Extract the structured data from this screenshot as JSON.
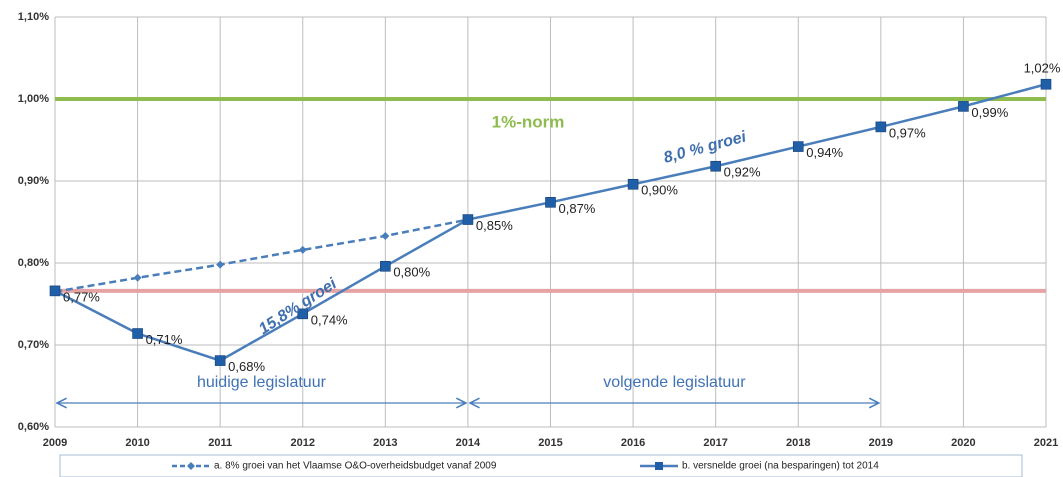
{
  "chart_data": {
    "type": "line",
    "x": [
      2009,
      2010,
      2011,
      2012,
      2013,
      2014,
      2015,
      2016,
      2017,
      2018,
      2019,
      2020,
      2021
    ],
    "xlim": [
      2009,
      2021
    ],
    "xticks": [
      2009,
      2010,
      2011,
      2012,
      2013,
      2014,
      2015,
      2016,
      2017,
      2018,
      2019,
      2020,
      2021
    ],
    "ylim": [
      0.6,
      1.1
    ],
    "yticks": [
      {
        "value": 0.6,
        "label": "0,60%"
      },
      {
        "value": 0.7,
        "label": "0,70%"
      },
      {
        "value": 0.8,
        "label": "0,80%"
      },
      {
        "value": 0.9,
        "label": "0,90%"
      },
      {
        "value": 1.0,
        "label": "1,00%"
      },
      {
        "value": 1.1,
        "label": "1,10%"
      }
    ],
    "grid": true,
    "series": [
      {
        "name": "a. 8% groei van het Vlaamse O&O-overheidsbudget vanaf 2009",
        "color": "#4a7ebb",
        "style": "dashed",
        "marker": "diamond",
        "values": [
          0.765,
          0.782,
          0.798,
          0.816,
          0.833,
          0.853,
          null,
          null,
          null,
          null,
          null,
          null,
          null
        ]
      },
      {
        "name": "b. versnelde groei (na besparingen) tot 2014",
        "color": "#4a7ebb",
        "style": "solid",
        "marker": "square",
        "values": [
          0.766,
          0.714,
          0.681,
          0.738,
          0.796,
          0.853,
          0.874,
          0.896,
          0.918,
          0.942,
          0.966,
          0.991,
          1.018
        ],
        "value_labels": [
          "0,77%",
          "0,71%",
          "0,68%",
          "0,74%",
          "0,80%",
          "0,85%",
          "0,87%",
          "0,90%",
          "0,92%",
          "0,94%",
          "0,97%",
          "0,99%",
          "1,02%"
        ]
      }
    ],
    "reference_lines": [
      {
        "value": 1.0,
        "label": "1%-norm",
        "color": "#8fbc4f"
      },
      {
        "value": 0.766,
        "color": "#e6a3a3"
      }
    ],
    "annotations": [
      "15,8% groei",
      "8,0 % groei"
    ],
    "periods": [
      {
        "label": "huidige legislatuur",
        "from": 2009,
        "to": 2014
      },
      {
        "label": "volgende legislatuur",
        "from": 2014,
        "to": 2019
      }
    ]
  }
}
